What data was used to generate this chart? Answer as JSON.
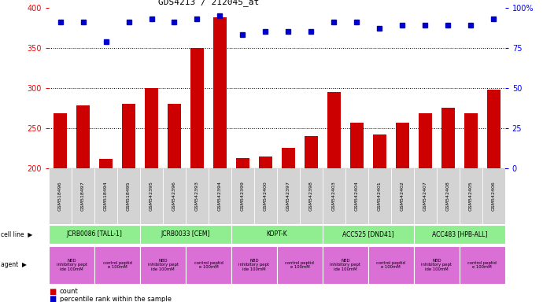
{
  "title": "GDS4213 / 212045_at",
  "samples": [
    "GSM518496",
    "GSM518497",
    "GSM518494",
    "GSM518495",
    "GSM542395",
    "GSM542396",
    "GSM542393",
    "GSM542394",
    "GSM542399",
    "GSM542400",
    "GSM542397",
    "GSM542398",
    "GSM542403",
    "GSM542404",
    "GSM542401",
    "GSM542402",
    "GSM542407",
    "GSM542408",
    "GSM542405",
    "GSM542406"
  ],
  "counts": [
    268,
    278,
    212,
    280,
    300,
    280,
    350,
    388,
    213,
    215,
    225,
    240,
    295,
    257,
    242,
    257,
    268,
    275,
    268,
    298
  ],
  "percentile": [
    91,
    91,
    79,
    91,
    93,
    91,
    93,
    95,
    83,
    85,
    85,
    85,
    91,
    91,
    87,
    89,
    89,
    89,
    89,
    93
  ],
  "cell_lines": [
    {
      "label": "JCRB0086 [TALL-1]",
      "start": 0,
      "end": 4,
      "color": "#90EE90"
    },
    {
      "label": "JCRB0033 [CEM]",
      "start": 4,
      "end": 8,
      "color": "#90EE90"
    },
    {
      "label": "KOPT-K",
      "start": 8,
      "end": 12,
      "color": "#90EE90"
    },
    {
      "label": "ACC525 [DND41]",
      "start": 12,
      "end": 16,
      "color": "#90EE90"
    },
    {
      "label": "ACC483 [HPB-ALL]",
      "start": 16,
      "end": 20,
      "color": "#90EE90"
    }
  ],
  "agents": [
    {
      "label": "NBD\ninhibitory pept\nide 100mM",
      "start": 0,
      "end": 2,
      "color": "#DA70D6"
    },
    {
      "label": "control peptid\ne 100mM",
      "start": 2,
      "end": 4,
      "color": "#DA70D6"
    },
    {
      "label": "NBD\ninhibitory pept\nide 100mM",
      "start": 4,
      "end": 6,
      "color": "#DA70D6"
    },
    {
      "label": "control peptid\ne 100mM",
      "start": 6,
      "end": 8,
      "color": "#DA70D6"
    },
    {
      "label": "NBD\ninhibitory pept\nide 100mM",
      "start": 8,
      "end": 10,
      "color": "#DA70D6"
    },
    {
      "label": "control peptid\ne 100mM",
      "start": 10,
      "end": 12,
      "color": "#DA70D6"
    },
    {
      "label": "NBD\ninhibitory pept\nide 100mM",
      "start": 12,
      "end": 14,
      "color": "#DA70D6"
    },
    {
      "label": "control peptid\ne 100mM",
      "start": 14,
      "end": 16,
      "color": "#DA70D6"
    },
    {
      "label": "NBD\ninhibitory pept\nide 100mM",
      "start": 16,
      "end": 18,
      "color": "#DA70D6"
    },
    {
      "label": "control peptid\ne 100mM",
      "start": 18,
      "end": 20,
      "color": "#DA70D6"
    }
  ],
  "ylim_left": [
    200,
    400
  ],
  "ylim_right": [
    0,
    100
  ],
  "yticks_left": [
    200,
    250,
    300,
    350,
    400
  ],
  "yticks_right": [
    0,
    25,
    50,
    75,
    100
  ],
  "ytick_labels_right": [
    "0",
    "25",
    "50",
    "75",
    "100%"
  ],
  "bar_color": "#CC0000",
  "marker_color": "#0000CC",
  "bar_width": 0.6,
  "sample_bg_color": "#d3d3d3",
  "legend_count_color": "#CC0000",
  "legend_pct_color": "#0000CC",
  "dotted_yvals": [
    250,
    300,
    350
  ]
}
